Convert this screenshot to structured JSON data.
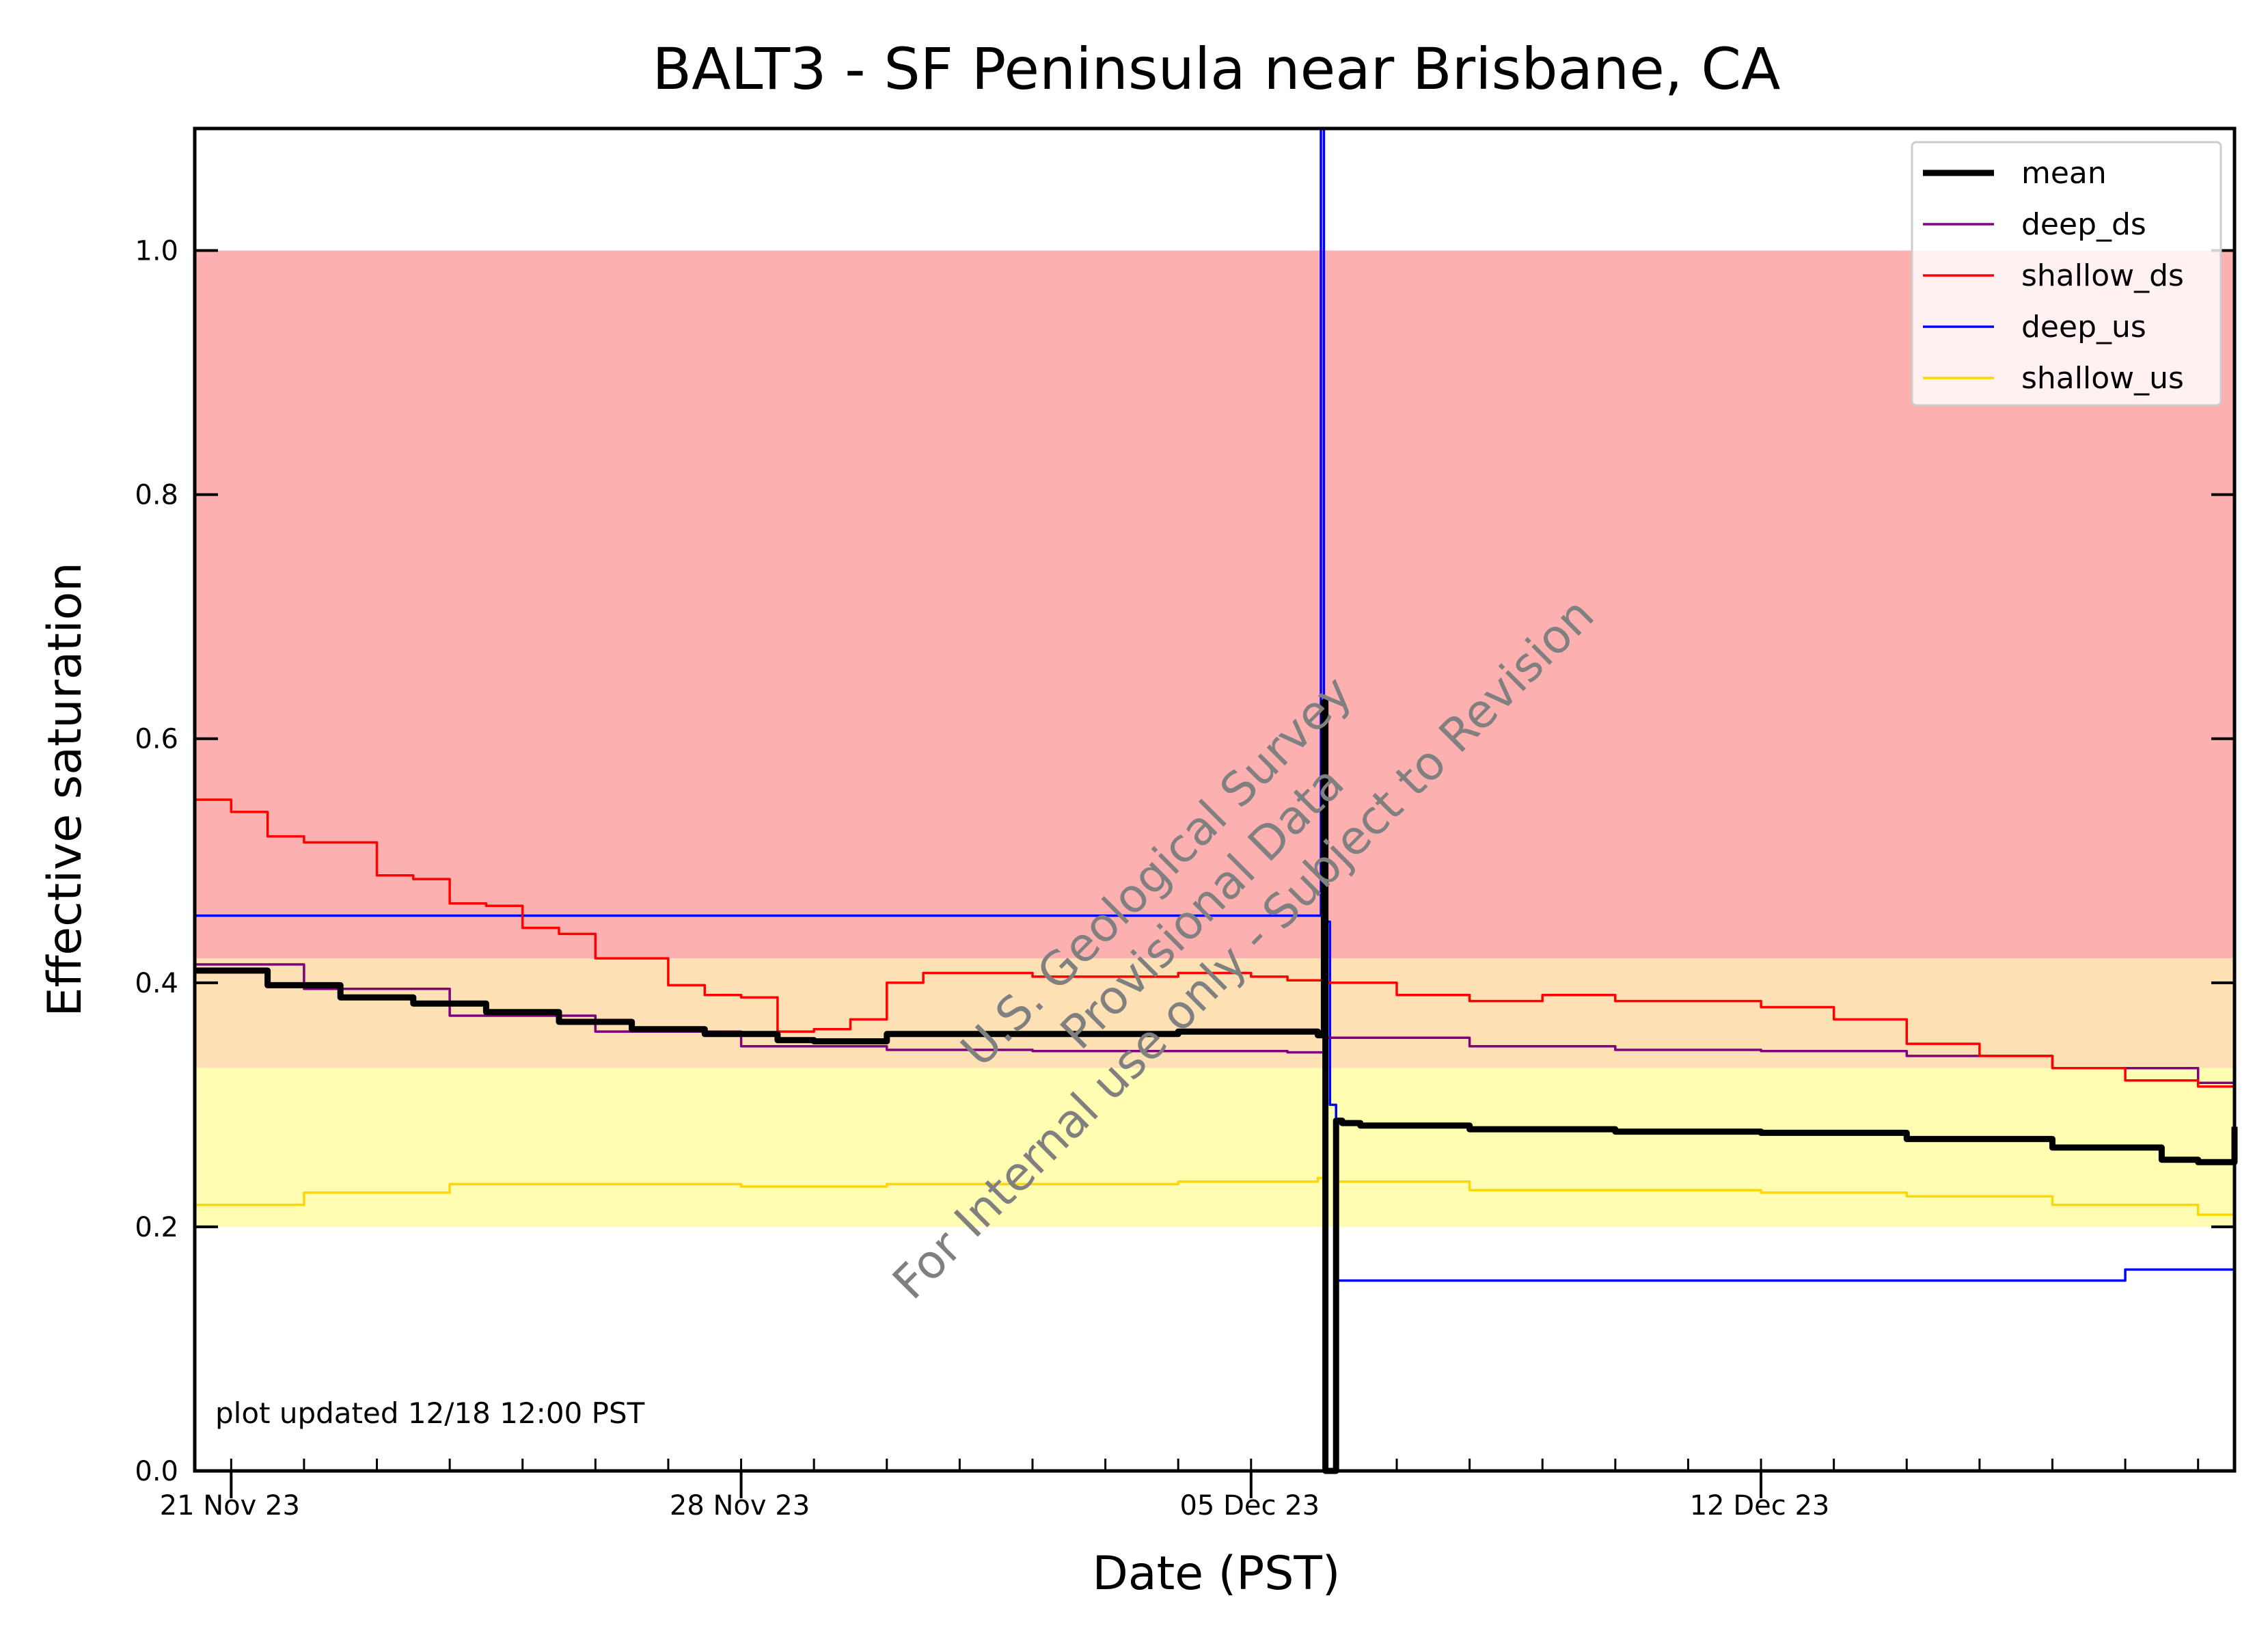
{
  "chart_data": {
    "type": "line",
    "title": "BALT3 - SF Peninsula near Brisbane, CA",
    "xlabel": "Date (PST)",
    "ylabel": "Effective saturation",
    "xlim": [
      "2023-11-20T12:00",
      "2023-12-18T12:00"
    ],
    "ylim": [
      0.0,
      1.1
    ],
    "x_ticks": [
      {
        "x": "2023-11-21",
        "label": "21 Nov 23"
      },
      {
        "x": "2023-11-28",
        "label": "28 Nov 23"
      },
      {
        "x": "2023-12-05",
        "label": "05 Dec 23"
      },
      {
        "x": "2023-12-12",
        "label": "12 Dec 23"
      }
    ],
    "y_ticks": [
      {
        "y": 0.0,
        "label": "0.0"
      },
      {
        "y": 0.2,
        "label": "0.2"
      },
      {
        "y": 0.4,
        "label": "0.4"
      },
      {
        "y": 0.6,
        "label": "0.6"
      },
      {
        "y": 0.8,
        "label": "0.8"
      },
      {
        "y": 1.0,
        "label": "1.0"
      }
    ],
    "bands": [
      {
        "y0": 0.42,
        "y1": 1.0,
        "color": "#fdb0b0"
      },
      {
        "y0": 0.33,
        "y1": 0.42,
        "color": "#fde1b4"
      },
      {
        "y0": 0.2,
        "y1": 0.33,
        "color": "#fefdb2"
      }
    ],
    "legend_position": "top-right",
    "series": [
      {
        "name": "mean",
        "color": "#000000",
        "x": [
          "2023-11-20T12:00",
          "2023-11-21T12:00",
          "2023-11-22T12:00",
          "2023-11-23T12:00",
          "2023-11-24T12:00",
          "2023-11-25T12:00",
          "2023-11-26T12:00",
          "2023-11-27T12:00",
          "2023-11-28T12:00",
          "2023-11-29T00:00",
          "2023-11-30T00:00",
          "2023-12-01T00:00",
          "2023-12-02T00:00",
          "2023-12-03T00:00",
          "2023-12-04T00:00",
          "2023-12-05T12:00",
          "2023-12-05T22:00",
          "2023-12-06T00:00",
          "2023-12-06T00:30",
          "2023-12-06T02:00",
          "2023-12-06T04:00",
          "2023-12-06T06:00",
          "2023-12-06T12:00",
          "2023-12-08T00:00",
          "2023-12-10T00:00",
          "2023-12-12T00:00",
          "2023-12-14T00:00",
          "2023-12-16T00:00",
          "2023-12-17T12:00",
          "2023-12-18T00:00",
          "2023-12-18T12:00"
        ],
        "y": [
          0.41,
          0.398,
          0.388,
          0.383,
          0.376,
          0.368,
          0.362,
          0.358,
          0.353,
          0.352,
          0.358,
          0.358,
          0.358,
          0.358,
          0.36,
          0.36,
          0.357,
          0.63,
          0.0,
          0.0,
          0.287,
          0.285,
          0.283,
          0.28,
          0.278,
          0.277,
          0.272,
          0.265,
          0.255,
          0.253,
          0.282
        ]
      },
      {
        "name": "deep_ds",
        "color": "#800080",
        "x": [
          "2023-11-20T12:00",
          "2023-11-22T00:00",
          "2023-11-24T00:00",
          "2023-11-26T00:00",
          "2023-11-28T00:00",
          "2023-11-30T00:00",
          "2023-12-02T00:00",
          "2023-12-05T12:00",
          "2023-12-06T00:00",
          "2023-12-08T00:00",
          "2023-12-10T00:00",
          "2023-12-12T00:00",
          "2023-12-14T00:00",
          "2023-12-16T00:00",
          "2023-12-18T00:00",
          "2023-12-18T12:00"
        ],
        "y": [
          0.415,
          0.395,
          0.373,
          0.36,
          0.348,
          0.345,
          0.344,
          0.343,
          0.355,
          0.348,
          0.345,
          0.344,
          0.34,
          0.33,
          0.318,
          0.335
        ]
      },
      {
        "name": "shallow_ds",
        "color": "#ff0000",
        "x": [
          "2023-11-20T12:00",
          "2023-11-21T00:00",
          "2023-11-21T12:00",
          "2023-11-22T00:00",
          "2023-11-23T00:00",
          "2023-11-23T12:00",
          "2023-11-24T00:00",
          "2023-11-24T12:00",
          "2023-11-25T00:00",
          "2023-11-25T12:00",
          "2023-11-26T00:00",
          "2023-11-26T12:00",
          "2023-11-27T00:00",
          "2023-11-27T12:00",
          "2023-11-28T00:00",
          "2023-11-28T12:00",
          "2023-11-29T00:00",
          "2023-11-29T12:00",
          "2023-11-30T00:00",
          "2023-11-30T12:00",
          "2023-12-01T00:00",
          "2023-12-02T00:00",
          "2023-12-03T00:00",
          "2023-12-04T00:00",
          "2023-12-05T00:00",
          "2023-12-05T12:00",
          "2023-12-06T00:00",
          "2023-12-07T00:00",
          "2023-12-08T00:00",
          "2023-12-09T00:00",
          "2023-12-10T00:00",
          "2023-12-11T00:00",
          "2023-12-12T00:00",
          "2023-12-13T00:00",
          "2023-12-14T00:00",
          "2023-12-15T00:00",
          "2023-12-16T00:00",
          "2023-12-17T00:00",
          "2023-12-18T00:00",
          "2023-12-18T12:00"
        ],
        "y": [
          0.55,
          0.54,
          0.52,
          0.515,
          0.488,
          0.485,
          0.465,
          0.463,
          0.445,
          0.44,
          0.42,
          0.42,
          0.398,
          0.39,
          0.388,
          0.36,
          0.362,
          0.37,
          0.4,
          0.408,
          0.408,
          0.405,
          0.405,
          0.408,
          0.405,
          0.402,
          0.4,
          0.39,
          0.385,
          0.39,
          0.385,
          0.385,
          0.38,
          0.37,
          0.35,
          0.34,
          0.33,
          0.32,
          0.315,
          0.41
        ]
      },
      {
        "name": "deep_us",
        "color": "#0000ff",
        "x": [
          "2023-11-20T12:00",
          "2023-12-05T22:00",
          "2023-12-05T23:00",
          "2023-12-06T00:00",
          "2023-12-06T01:00",
          "2023-12-06T02:00",
          "2023-12-06T04:00",
          "2023-12-08T00:00",
          "2023-12-12T00:00",
          "2023-12-16T00:00",
          "2023-12-17T00:00",
          "2023-12-18T12:00"
        ],
        "y": [
          0.455,
          0.455,
          1.1,
          0.2,
          0.45,
          0.3,
          0.156,
          0.156,
          0.156,
          0.156,
          0.165,
          0.165
        ]
      },
      {
        "name": "shallow_us",
        "color": "#ffd700",
        "x": [
          "2023-11-20T12:00",
          "2023-11-22T00:00",
          "2023-11-24T00:00",
          "2023-11-26T00:00",
          "2023-11-28T00:00",
          "2023-11-30T00:00",
          "2023-12-02T00:00",
          "2023-12-04T00:00",
          "2023-12-05T22:00",
          "2023-12-06T00:00",
          "2023-12-06T02:00",
          "2023-12-06T04:00",
          "2023-12-08T00:00",
          "2023-12-10T00:00",
          "2023-12-12T00:00",
          "2023-12-14T00:00",
          "2023-12-16T00:00",
          "2023-12-18T00:00",
          "2023-12-18T12:00"
        ],
        "y": [
          0.218,
          0.228,
          0.235,
          0.235,
          0.233,
          0.235,
          0.235,
          0.237,
          0.24,
          0.0,
          0.0,
          0.237,
          0.23,
          0.23,
          0.228,
          0.225,
          0.218,
          0.21,
          0.212
        ]
      }
    ],
    "annotations": {
      "updated_note": "plot updated 12/18 12:00  PST",
      "watermark": [
        "U.S. Geological Survey",
        "Provisional Data",
        "For Internal use only - Subject to Revision"
      ]
    }
  }
}
